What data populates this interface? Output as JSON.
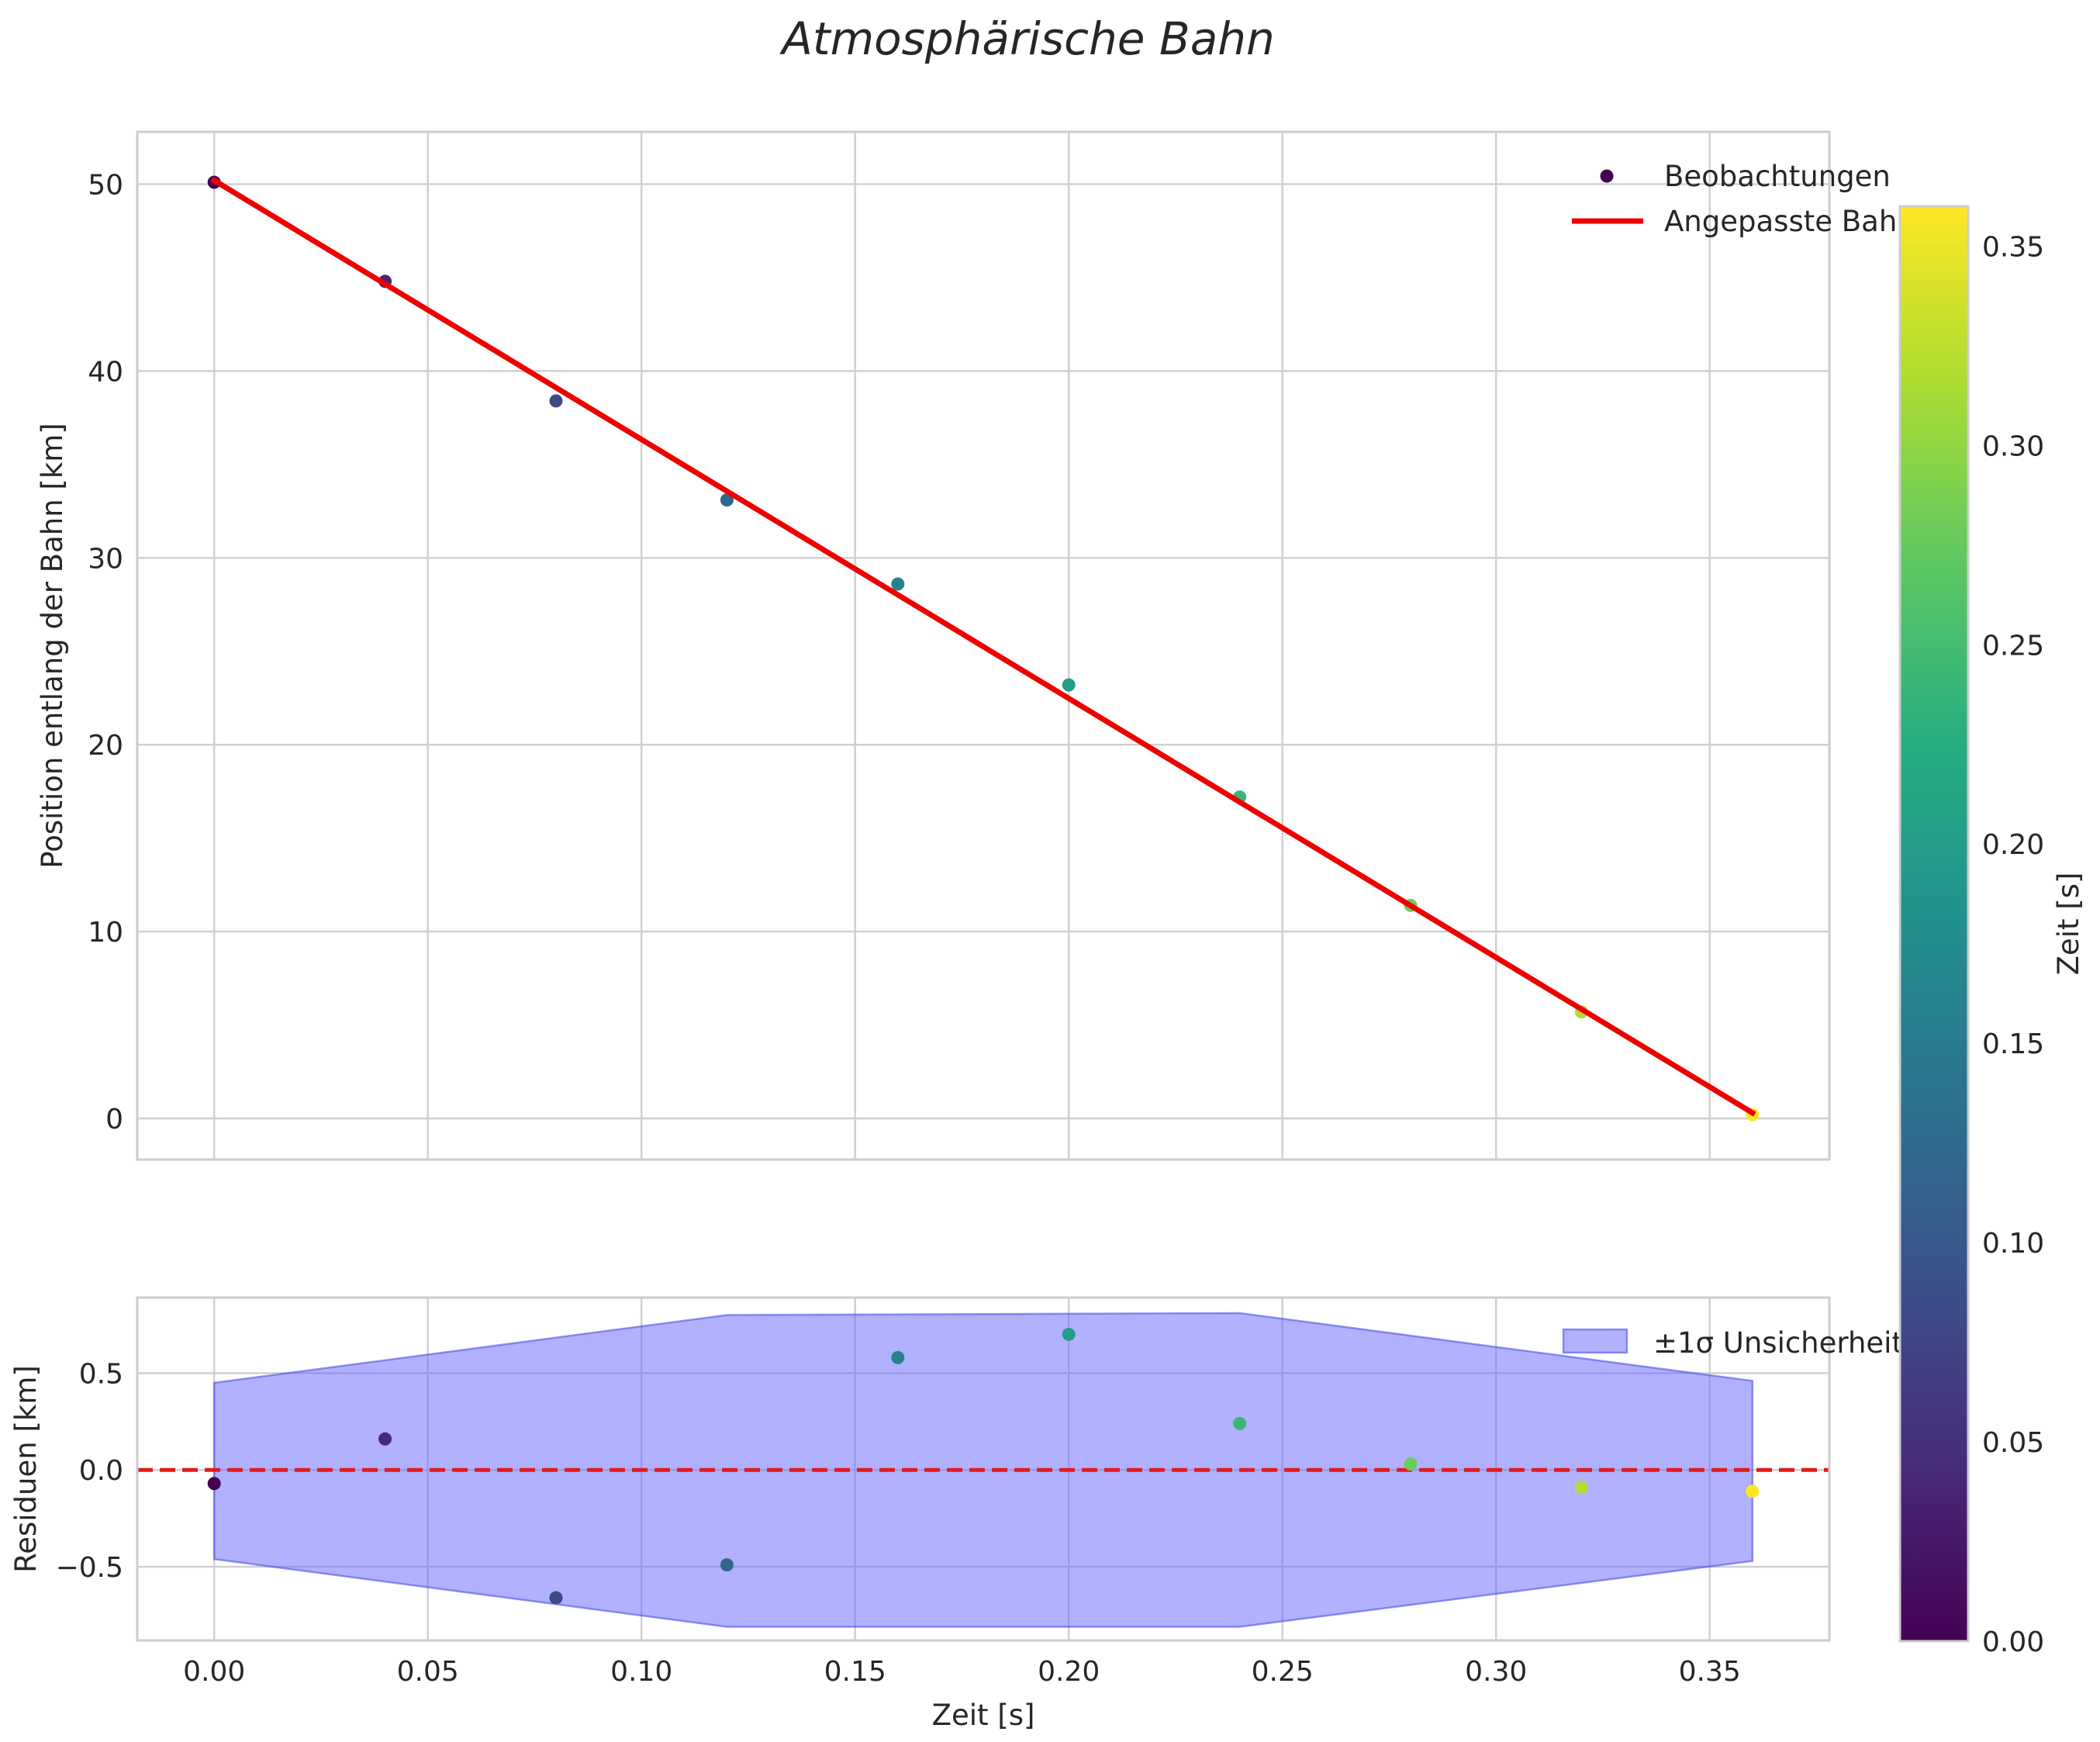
{
  "title": "Atmosphärische Bahn",
  "chart_data": [
    {
      "type": "scatter",
      "panel": "top",
      "ylabel": "Position entlang der Bahn [km]",
      "xlim": [
        -0.018,
        0.378
      ],
      "ylim": [
        -2.2,
        52.8
      ],
      "xticks": [
        0.0,
        0.05,
        0.1,
        0.15,
        0.2,
        0.25,
        0.3,
        0.35
      ],
      "yticks": [
        0,
        10,
        20,
        30,
        40,
        50
      ],
      "ytick_labels": [
        "0",
        "10",
        "20",
        "30",
        "40",
        "50"
      ],
      "grid": true,
      "legend_position": "top-right",
      "series": [
        {
          "name": "Beobachtungen",
          "kind": "scatter",
          "color_by": "Zeit [s]",
          "x": [
            0.0,
            0.04,
            0.08,
            0.12,
            0.16,
            0.2,
            0.24,
            0.28,
            0.32,
            0.36
          ],
          "y": [
            50.1,
            44.8,
            38.4,
            33.1,
            28.6,
            23.2,
            17.2,
            11.4,
            5.7,
            0.2
          ]
        },
        {
          "name": "Angepasste Bahn",
          "kind": "line",
          "color": "#ef0000",
          "x": [
            0.0,
            0.36
          ],
          "y": [
            50.2,
            0.3
          ]
        }
      ]
    },
    {
      "type": "scatter",
      "panel": "bottom",
      "xlabel": "Zeit [s]",
      "ylabel": "Residuen [km]",
      "xlim": [
        -0.018,
        0.378
      ],
      "ylim": [
        -0.88,
        0.89
      ],
      "xticks": [
        0.0,
        0.05,
        0.1,
        0.15,
        0.2,
        0.25,
        0.3,
        0.35
      ],
      "xtick_labels": [
        "0.00",
        "0.05",
        "0.10",
        "0.15",
        "0.20",
        "0.25",
        "0.30",
        "0.35"
      ],
      "yticks": [
        -0.5,
        0.0,
        0.5
      ],
      "ytick_labels": [
        "−0.5",
        "0.0",
        "0.5"
      ],
      "grid": true,
      "legend_position": "top-right",
      "zero_line_color": "#e41a1c",
      "band": {
        "name": "±1σ Unsicherheit",
        "color": "#6464ff",
        "x": [
          0.0,
          0.12,
          0.24,
          0.36
        ],
        "upper": [
          0.45,
          0.8,
          0.81,
          0.46
        ],
        "lower": [
          -0.46,
          -0.81,
          -0.81,
          -0.47
        ]
      },
      "series": [
        {
          "name": "Residuen",
          "kind": "scatter",
          "color_by": "Zeit [s]",
          "x": [
            0.0,
            0.04,
            0.08,
            0.12,
            0.16,
            0.2,
            0.24,
            0.28,
            0.32,
            0.36
          ],
          "y": [
            -0.07,
            0.16,
            -0.66,
            -0.49,
            0.58,
            0.7,
            0.24,
            0.03,
            -0.09,
            -0.11
          ]
        }
      ]
    }
  ],
  "colorbar": {
    "label": "Zeit [s]",
    "range": [
      0.0,
      0.36
    ],
    "ticks": [
      0.0,
      0.05,
      0.1,
      0.15,
      0.2,
      0.25,
      0.3,
      0.35
    ],
    "tick_labels": [
      "0.00",
      "0.05",
      "0.10",
      "0.15",
      "0.20",
      "0.25",
      "0.30",
      "0.35"
    ],
    "colormap": [
      "#440154",
      "#472c7a",
      "#3b518b",
      "#2c718e",
      "#21908d",
      "#27ad81",
      "#5cc863",
      "#aadc32",
      "#fde725"
    ]
  }
}
